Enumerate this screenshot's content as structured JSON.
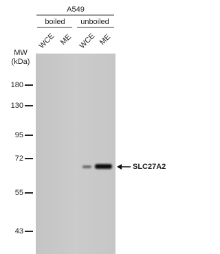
{
  "header": {
    "cell_line": "A549",
    "groups": [
      "boiled",
      "unboiled"
    ],
    "lanes": [
      "WCE",
      "ME",
      "WCE",
      "ME"
    ]
  },
  "mw": {
    "label_lines": [
      "MW",
      "(kDa)"
    ],
    "markers": [
      "180",
      "130",
      "95",
      "72",
      "55",
      "43"
    ]
  },
  "band": {
    "label": "SLC27A2"
  }
}
